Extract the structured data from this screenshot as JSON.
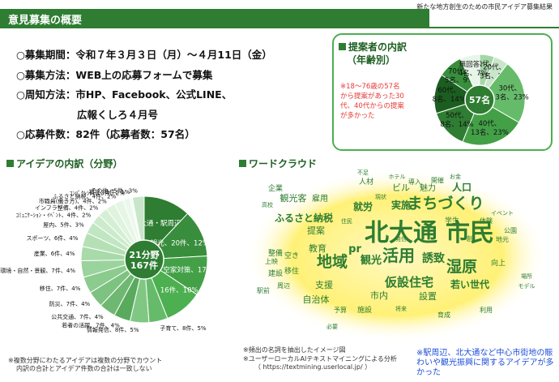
{
  "header": {
    "caption": "新たな地方創生のための市民アイデア募集結果",
    "title": "意見募集の概要"
  },
  "outline": [
    {
      "label": "○募集期間：令和７年３月３日（月）～４月11日（金）"
    },
    {
      "label": "○募集方法：WEB上の応募フォームで募集"
    },
    {
      "label": "○周知方法：市HP、Facebook、公式LINE、"
    },
    {
      "label": "　　　　　　広報くしろ４月号"
    },
    {
      "label": "○応募件数：82件（応募者数：57名）"
    }
  ],
  "age_section": {
    "heading": "提案者の内訳",
    "subheading": "（年齢別）",
    "note": "※18～76歳の57名から提案があった30代、40代からの提案が多かった"
  },
  "field_section": {
    "heading": "アイデアの内訳（分野）",
    "note1": "※複数分野にわたるアイデアは複数の分野でカウント",
    "note2": "内訳の合計とアイデア件数の合計は一致しない"
  },
  "wordcloud_section": {
    "heading": "ワードクラウド",
    "note1": "※頻出の名詞を抽出したイメージ図",
    "note2": "※ユーザーローカルAIテキストマイニングによる分析",
    "note3": "（ https://textmining.userlocal.jp/ ）",
    "words": [
      {
        "text": "北大通",
        "size": 30,
        "color": "#2e7d32"
      },
      {
        "text": "市民",
        "size": 30,
        "color": "#2e7d32"
      },
      {
        "text": "まちづくり",
        "size": 19,
        "color": "#2e7d32"
      },
      {
        "text": "活用",
        "size": 20,
        "color": "#2e7d32"
      },
      {
        "text": "湿原",
        "size": 19,
        "color": "#2e7d32"
      },
      {
        "text": "地域",
        "size": 19,
        "color": "#2e7d32"
      },
      {
        "text": "仮設住宅",
        "size": 15,
        "color": "#2e7d32"
      },
      {
        "text": "若い世代",
        "size": 12,
        "color": "#2e7d32"
      },
      {
        "text": "観光",
        "size": 13,
        "color": "#2e7d32"
      },
      {
        "text": "誘致",
        "size": 14,
        "color": "#2e7d32"
      },
      {
        "text": "ふるさと納税",
        "size": 12,
        "color": "#2e7d32"
      },
      {
        "text": "就労",
        "size": 12,
        "color": "#2e7d32"
      },
      {
        "text": "実施",
        "size": 12,
        "color": "#2e7d32"
      },
      {
        "text": "観光客",
        "size": 11,
        "color": "#2e7d32"
      },
      {
        "text": "人口",
        "size": 12,
        "color": "#2e7d32"
      },
      {
        "text": "ビル",
        "size": 11,
        "color": "#2e7d32"
      },
      {
        "text": "魅力",
        "size": 10,
        "color": "#2e7d32"
      },
      {
        "text": "提案",
        "size": 11,
        "color": "#2e7d32"
      },
      {
        "text": "教育",
        "size": 11,
        "color": "#2e7d32"
      },
      {
        "text": "pr",
        "size": 13,
        "color": "#2e7d32"
      },
      {
        "text": "支援",
        "size": 11,
        "color": "#2e7d32"
      },
      {
        "text": "自治体",
        "size": 11,
        "color": "#2e7d32"
      },
      {
        "text": "市内",
        "size": 11,
        "color": "#2e7d32"
      },
      {
        "text": "設置",
        "size": 11,
        "color": "#2e7d32"
      },
      {
        "text": "雇用",
        "size": 10,
        "color": "#2e7d32"
      },
      {
        "text": "学生",
        "size": 9,
        "color": "#2e7d32"
      },
      {
        "text": "企業",
        "size": 9,
        "color": "#2e7d32"
      },
      {
        "text": "人材",
        "size": 9,
        "color": "#2e7d32"
      },
      {
        "text": "導入",
        "size": 8,
        "color": "#2e7d32"
      },
      {
        "text": "開催",
        "size": 8,
        "color": "#2e7d32"
      },
      {
        "text": "空き",
        "size": 9,
        "color": "#2e7d32"
      },
      {
        "text": "整備",
        "size": 9,
        "color": "#2e7d32"
      },
      {
        "text": "建設",
        "size": 9,
        "color": "#2e7d32"
      },
      {
        "text": "移住",
        "size": 9,
        "color": "#2e7d32"
      },
      {
        "text": "向上",
        "size": 9,
        "color": "#2e7d32"
      },
      {
        "text": "施設",
        "size": 9,
        "color": "#2e7d32"
      },
      {
        "text": "育成",
        "size": 8,
        "color": "#2e7d32"
      },
      {
        "text": "利用",
        "size": 8,
        "color": "#2e7d32"
      },
      {
        "text": "地元",
        "size": 8,
        "color": "#2e7d32"
      },
      {
        "text": "公園",
        "size": 8,
        "color": "#2e7d32"
      },
      {
        "text": "体験",
        "size": 8,
        "color": "#2e7d32"
      },
      {
        "text": "予算",
        "size": 8,
        "color": "#2e7d32"
      },
      {
        "text": "上映",
        "size": 8,
        "color": "#2e7d32"
      },
      {
        "text": "周辺",
        "size": 8,
        "color": "#2e7d32"
      },
      {
        "text": "駅前",
        "size": 8,
        "color": "#2e7d32"
      },
      {
        "text": "場所",
        "size": 7,
        "color": "#2e7d32"
      },
      {
        "text": "モデル",
        "size": 7,
        "color": "#2e7d32"
      },
      {
        "text": "不足",
        "size": 7,
        "color": "#2e7d32"
      },
      {
        "text": "ホテル",
        "size": 7,
        "color": "#2e7d32"
      },
      {
        "text": "お金",
        "size": 7,
        "color": "#2e7d32"
      },
      {
        "text": "高校",
        "size": 7,
        "color": "#2e7d32"
      },
      {
        "text": "イベント",
        "size": 7,
        "color": "#2e7d32"
      },
      {
        "text": "必要",
        "size": 7,
        "color": "#2e7d32"
      },
      {
        "text": "現状",
        "size": 7,
        "color": "#2e7d32"
      },
      {
        "text": "住民",
        "size": 7,
        "color": "#2e7d32"
      },
      {
        "text": "将来",
        "size": 7,
        "color": "#2e7d32"
      },
      {
        "text": "発信",
        "size": 7,
        "color": "#2e7d32"
      },
      {
        "text": "創",
        "size": 8,
        "color": "#2e7d32"
      }
    ]
  },
  "bottom_note": "※駅周辺、北大通など中心市街地の賑わいや観光振興に関するアイデアが多かった",
  "chart_data": [
    {
      "type": "pie",
      "title": "提案者の内訳（年齢別）",
      "center_label": "57名",
      "slices": [
        {
          "label": "10代",
          "value": 3,
          "percent": 5
        },
        {
          "label": "20代",
          "value": 3,
          "percent": 5
        },
        {
          "label": "30代",
          "value": 13,
          "percent": 23
        },
        {
          "label": "40代",
          "value": 13,
          "percent": 23
        },
        {
          "label": "50代",
          "value": 8,
          "percent": 14
        },
        {
          "label": "60代",
          "value": 8,
          "percent": 14
        },
        {
          "label": "70代",
          "value": 5,
          "percent": 9
        },
        {
          "label": "無回答",
          "value": 4,
          "percent": 7
        }
      ],
      "colors": [
        "#a5d6a7",
        "#c8e6c9",
        "#66bb6a",
        "#43a047",
        "#2e7d32",
        "#1b5e20",
        "#388e3c",
        "#e8f5e9"
      ]
    },
    {
      "type": "pie",
      "title": "アイデアの内訳（分野）",
      "center_label": [
        "21分野",
        "167件"
      ],
      "slices": [
        {
          "label": "中心市街地・北大通・駅周辺",
          "value": 20,
          "percent": 12
        },
        {
          "label": "観光",
          "value": 20,
          "percent": 12
        },
        {
          "label": "空きビル・空家対策",
          "value": 17,
          "percent": 10
        },
        {
          "label": "教育",
          "value": 16,
          "percent": 10
        },
        {
          "label": "子育て",
          "value": 8,
          "percent": 5
        },
        {
          "label": "情報発信",
          "value": 8,
          "percent": 5
        },
        {
          "label": "若者の活躍",
          "value": 7,
          "percent": 4
        },
        {
          "label": "公共交通",
          "value": 7,
          "percent": 4
        },
        {
          "label": "防災",
          "value": 7,
          "percent": 4
        },
        {
          "label": "移住",
          "value": 7,
          "percent": 4
        },
        {
          "label": "生活環境・自然・景観",
          "value": 7,
          "percent": 4
        },
        {
          "label": "産業",
          "value": 6,
          "percent": 4
        },
        {
          "label": "スポーツ",
          "value": 6,
          "percent": 4
        },
        {
          "label": "屋内",
          "value": 5,
          "percent": 3
        },
        {
          "label": "ｺﾐｭﾆｹｰｼｮﾝ・ｲﾍﾞﾝﾄ",
          "value": 4,
          "percent": 2
        },
        {
          "label": "インフラ整備",
          "value": 4,
          "percent": 2
        },
        {
          "label": "市職員(働き方)",
          "value": 4,
          "percent": 2
        },
        {
          "label": "ふるさと納税",
          "value": 4,
          "percent": 2
        },
        {
          "label": "ｺﾝﾊﾟｸﾄｼﾃｨ",
          "value": 3,
          "percent": 2
        },
        {
          "label": "福祉",
          "value": 1,
          "percent": 1
        },
        {
          "label": "その他",
          "value": 5,
          "percent": 3
        }
      ],
      "colors": [
        "#2e7d32",
        "#388e3c",
        "#43a047",
        "#4caf50",
        "#66bb6a",
        "#81c784",
        "#5aaa5e",
        "#6fb872",
        "#7dc280",
        "#8ccb8e",
        "#9bd39c",
        "#a9daaa",
        "#b5e0b6",
        "#c1e6c2",
        "#cbebcc",
        "#d5efd5",
        "#dff3df",
        "#e6f6e6",
        "#edf8ed",
        "#f3fbf3",
        "#c8e6c9"
      ]
    }
  ]
}
